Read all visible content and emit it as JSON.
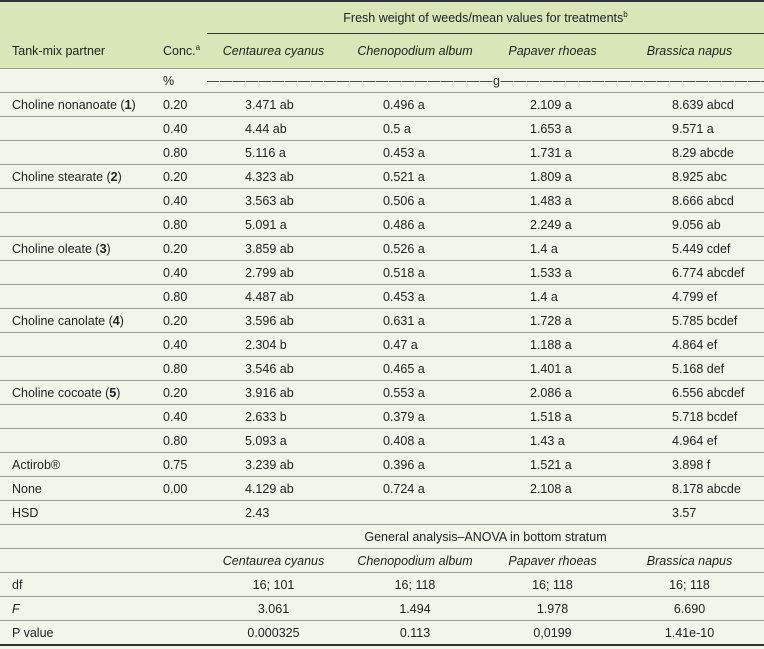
{
  "header": {
    "group_title": "Fresh weight of weeds/mean values for treatments",
    "group_title_sup": "b",
    "col_partner": "Tank-mix partner",
    "col_conc": "Conc.",
    "col_conc_sup": "a",
    "species": [
      "Centaurea cyanus",
      "Chenopodium album",
      "Papaver rhoeas",
      "Brassica napus"
    ]
  },
  "units": {
    "conc": "%",
    "weight": "——————————————————————g——————————————————————"
  },
  "rows": [
    {
      "partner": "Choline nonanoate (",
      "num": "1",
      "close": ")",
      "conc": "0.20",
      "v": [
        "3.471 ab",
        "0.496 a",
        "2.109 a",
        "8.639 abcd"
      ]
    },
    {
      "partner": "",
      "num": "",
      "close": "",
      "conc": "0.40",
      "v": [
        "4.44 ab",
        "0.5 a",
        "1.653 a",
        "9.571 a"
      ]
    },
    {
      "partner": "",
      "num": "",
      "close": "",
      "conc": "0.80",
      "v": [
        "5.116 a",
        "0.453 a",
        "1.731 a",
        "8.29 abcde"
      ]
    },
    {
      "partner": "Choline stearate (",
      "num": "2",
      "close": ")",
      "conc": "0.20",
      "v": [
        "4.323 ab",
        "0.521 a",
        "1.809 a",
        "8.925 abc"
      ]
    },
    {
      "partner": "",
      "num": "",
      "close": "",
      "conc": "0.40",
      "v": [
        "3.563 ab",
        "0.506 a",
        "1.483 a",
        "8.666 abcd"
      ]
    },
    {
      "partner": "",
      "num": "",
      "close": "",
      "conc": "0.80",
      "v": [
        "5.091 a",
        "0.486 a",
        "2.249 a",
        "9.056 ab"
      ]
    },
    {
      "partner": "Choline oleate (",
      "num": "3",
      "close": ")",
      "conc": "0.20",
      "v": [
        "3.859 ab",
        "0.526 a",
        "1.4 a",
        "5.449 cdef"
      ]
    },
    {
      "partner": "",
      "num": "",
      "close": "",
      "conc": "0.40",
      "v": [
        "2.799 ab",
        "0.518 a",
        "1.533 a",
        "6.774 abcdef"
      ]
    },
    {
      "partner": "",
      "num": "",
      "close": "",
      "conc": "0.80",
      "v": [
        "4.487 ab",
        "0.453 a",
        "1.4 a",
        "4.799 ef"
      ]
    },
    {
      "partner": "Choline canolate (",
      "num": "4",
      "close": ")",
      "conc": "0.20",
      "v": [
        "3.596 ab",
        "0.631 a",
        "1.728 a",
        "5.785 bcdef"
      ]
    },
    {
      "partner": "",
      "num": "",
      "close": "",
      "conc": "0.40",
      "v": [
        "2.304 b",
        "0.47 a",
        "1.188 a",
        "4.864 ef"
      ]
    },
    {
      "partner": "",
      "num": "",
      "close": "",
      "conc": "0.80",
      "v": [
        "3.546 ab",
        "0.465 a",
        "1.401 a",
        "5.168 def"
      ]
    },
    {
      "partner": "Choline cocoate (",
      "num": "5",
      "close": ")",
      "conc": "0.20",
      "v": [
        "3.916 ab",
        "0.553 a",
        "2.086 a",
        "6.556 abcdef"
      ]
    },
    {
      "partner": "",
      "num": "",
      "close": "",
      "conc": "0.40",
      "v": [
        "2.633 b",
        "0.379 a",
        "1.518 a",
        "5.718 bcdef"
      ]
    },
    {
      "partner": "",
      "num": "",
      "close": "",
      "conc": "0.80",
      "v": [
        "5.093 a",
        "0.408 a",
        "1.43 a",
        "4.964 ef"
      ]
    },
    {
      "partner": "Actirob®",
      "num": "",
      "close": "",
      "conc": "0.75",
      "v": [
        "3.239 ab",
        "0.396 a",
        "1.521 a",
        "3.898 f"
      ]
    },
    {
      "partner": "None",
      "num": "",
      "close": "",
      "conc": "0.00",
      "v": [
        "4.129 ab",
        "0.724 a",
        "2.108 a",
        "8.178 abcde"
      ]
    },
    {
      "partner": "HSD",
      "num": "",
      "close": "",
      "conc": "",
      "v": [
        "2.43",
        "",
        "",
        "3.57"
      ]
    }
  ],
  "anova": {
    "title": "General analysis–ANOVA in bottom stratum",
    "species": [
      "Centaurea cyanus",
      "Chenopodium album",
      "Papaver rhoeas",
      "Brassica napus"
    ],
    "rows": [
      {
        "label": "df",
        "italic": false,
        "v": [
          "16; 101",
          "16; 118",
          "16; 118",
          "16; 118"
        ]
      },
      {
        "label": "F",
        "italic": true,
        "v": [
          "3.061",
          "1.494",
          "1.978",
          "6.690"
        ]
      },
      {
        "label": "P value",
        "italic": false,
        "v": [
          "0.000325",
          "0.113",
          "0,0199",
          "1.41e-10"
        ]
      }
    ]
  }
}
